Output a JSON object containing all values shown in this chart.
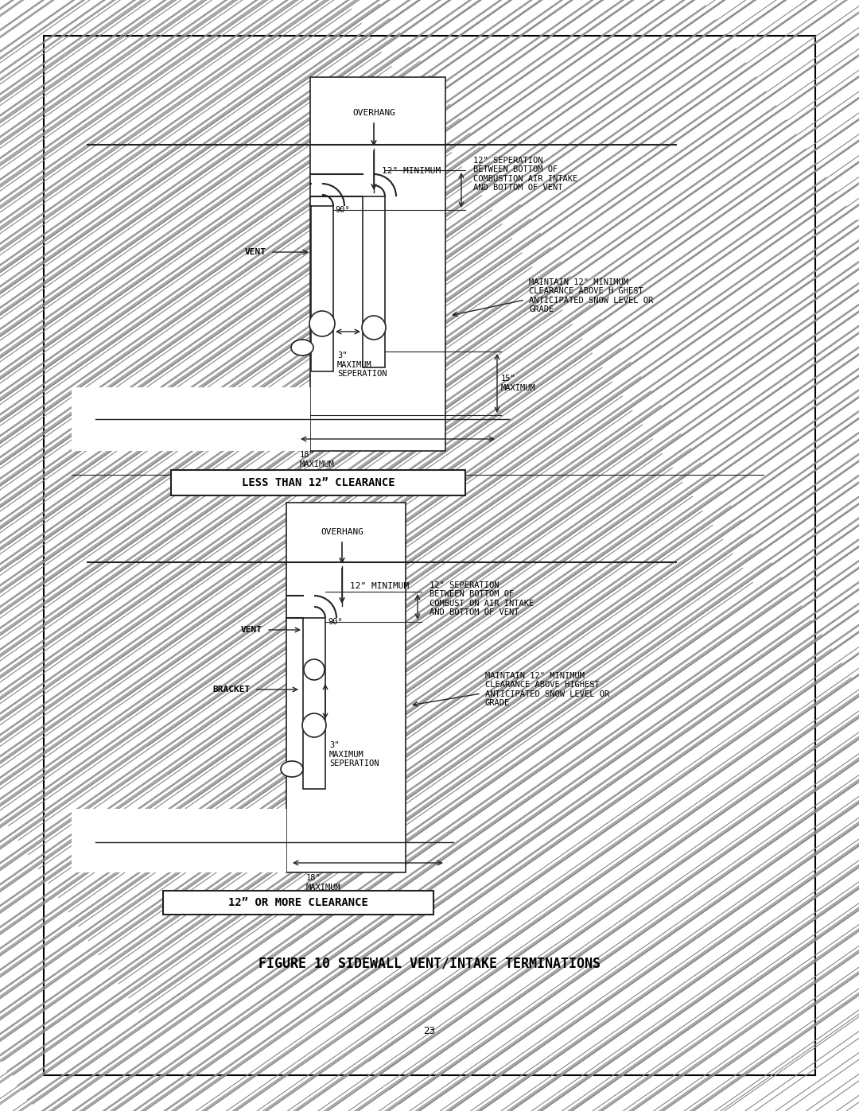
{
  "page_bg": "#ffffff",
  "border_color": "#000000",
  "line_color": "#222222",
  "text_color": "#000000",
  "hatch_color": "#888888",
  "figure_title": "FIGURE 10 SIDEWALL VENT/INTAKE TERMINATIONS",
  "page_number": "23",
  "box1_label": "LESS THAN 12” CLEARANCE",
  "box2_label": "12” OR MORE CLEARANCE",
  "section1": {
    "overhang_label": "OVERHANG",
    "min12_label": "12\" MINIMUM",
    "sep12_label": "12\" SEPERATION\nBETWEEN BOTTOM OF\nCOMBUSTION AIR INTAKE\nAND BOTTOM OF VENT",
    "snow_label": "MAINTAIN 12\" MINIMUM\nCLEARANCE ABOVE H GHEST\nANTICIPATED SNOW LEVEL OR\nGRADE",
    "vent_label": "VENT",
    "angle_label": "90°",
    "sep3_label": "3\"\nMAXIMUM\nSEPERATION",
    "max15_label": "15\"\nMAXIMUM",
    "max18_label": "18\"\nMAXIMUM"
  },
  "section2": {
    "overhang_label": "OVERHANG",
    "min12_label": "12\" MINIMUM",
    "sep12_label": "12\" SEPERATION\nBETWEEN BOTTOM OF\nCOMBUST ON AIR INTAKE\nAND BOTTOM OF VENT",
    "snow_label": "MAINTAIN 12\" MINIMUM\nCLEARANCE ABOVE HIGHEST\nANTICIPATED SNOW LEVEL OR\nGRADE",
    "vent_label": "VENT",
    "bracket_label": "BRACKET",
    "angle_label": "90°",
    "sep3_label": "3\"\nMAXIMUM\nSEPERATION",
    "max18_label": "18\"\nMAXIMUM"
  }
}
